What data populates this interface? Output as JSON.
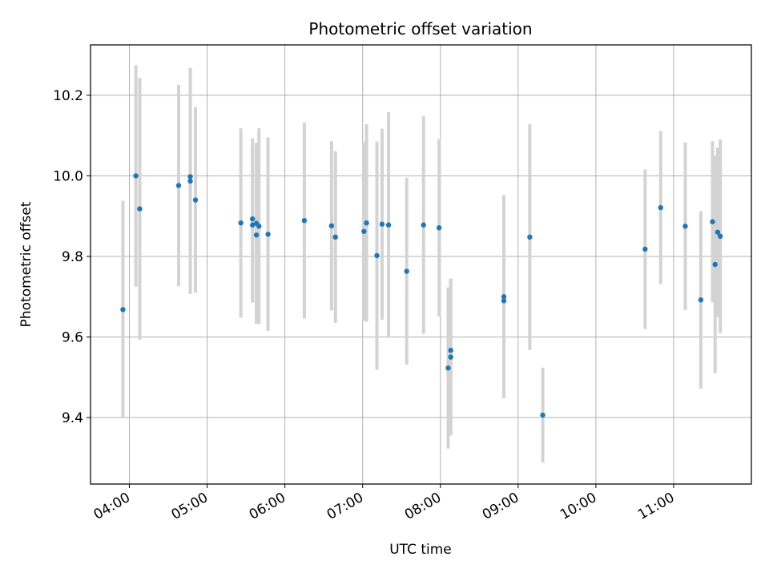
{
  "chart_data": {
    "type": "scatter",
    "title": "Photometric offset variation",
    "xlabel": "UTC time",
    "ylabel": "Photometric offset",
    "x_is_time": true,
    "xlim": [
      "03:30",
      "12:00"
    ],
    "ylim": [
      9.235,
      10.325
    ],
    "xticks": [
      "04:00",
      "05:00",
      "06:00",
      "07:00",
      "08:00",
      "09:00",
      "10:00",
      "11:00"
    ],
    "yticks": [
      "9.4",
      "9.6",
      "9.8",
      "10.0",
      "10.2"
    ],
    "grid": true,
    "colors": {
      "point": "#1f77b4",
      "errorbar": "#d3d3d3",
      "grid": "#b0b0b0"
    },
    "points": [
      {
        "x": "03:55",
        "y": 9.668,
        "err": 0.27
      },
      {
        "x": "04:05",
        "y": 10.0,
        "err": 0.275
      },
      {
        "x": "04:08",
        "y": 9.918,
        "err": 0.325
      },
      {
        "x": "04:38",
        "y": 9.976,
        "err": 0.25
      },
      {
        "x": "04:47",
        "y": 9.998,
        "err": 0.27
      },
      {
        "x": "04:47",
        "y": 9.987,
        "err": 0.28
      },
      {
        "x": "04:51",
        "y": 9.94,
        "err": 0.23
      },
      {
        "x": "05:26",
        "y": 9.883,
        "err": 0.235
      },
      {
        "x": "05:35",
        "y": 9.878,
        "err": 0.193
      },
      {
        "x": "05:35",
        "y": 9.893,
        "err": 0.2
      },
      {
        "x": "05:38",
        "y": 9.882,
        "err": 0.2
      },
      {
        "x": "05:38",
        "y": 9.853,
        "err": 0.22
      },
      {
        "x": "05:40",
        "y": 9.875,
        "err": 0.243
      },
      {
        "x": "05:47",
        "y": 9.855,
        "err": 0.24
      },
      {
        "x": "06:15",
        "y": 9.889,
        "err": 0.243
      },
      {
        "x": "06:36",
        "y": 9.876,
        "err": 0.21
      },
      {
        "x": "06:39",
        "y": 9.848,
        "err": 0.213
      },
      {
        "x": "07:01",
        "y": 9.862,
        "err": 0.222
      },
      {
        "x": "07:03",
        "y": 9.883,
        "err": 0.245
      },
      {
        "x": "07:11",
        "y": 9.802,
        "err": 0.283
      },
      {
        "x": "07:15",
        "y": 9.88,
        "err": 0.237
      },
      {
        "x": "07:20",
        "y": 9.878,
        "err": 0.28
      },
      {
        "x": "07:34",
        "y": 9.763,
        "err": 0.232
      },
      {
        "x": "07:47",
        "y": 9.878,
        "err": 0.27
      },
      {
        "x": "07:59",
        "y": 9.871,
        "err": 0.22
      },
      {
        "x": "08:06",
        "y": 9.523,
        "err": 0.2
      },
      {
        "x": "08:08",
        "y": 9.567,
        "err": 0.178
      },
      {
        "x": "08:08",
        "y": 9.55,
        "err": 0.195
      },
      {
        "x": "08:49",
        "y": 9.7,
        "err": 0.252
      },
      {
        "x": "08:49",
        "y": 9.69,
        "err": 0.242
      },
      {
        "x": "09:09",
        "y": 9.848,
        "err": 0.28
      },
      {
        "x": "09:19",
        "y": 9.406,
        "err": 0.118
      },
      {
        "x": "10:38",
        "y": 9.818,
        "err": 0.198
      },
      {
        "x": "10:50",
        "y": 9.921,
        "err": 0.19
      },
      {
        "x": "11:09",
        "y": 9.875,
        "err": 0.208
      },
      {
        "x": "11:21",
        "y": 9.692,
        "err": 0.22
      },
      {
        "x": "11:30",
        "y": 9.886,
        "err": 0.2
      },
      {
        "x": "11:32",
        "y": 9.78,
        "err": 0.27
      },
      {
        "x": "11:34",
        "y": 9.86,
        "err": 0.21
      },
      {
        "x": "11:36",
        "y": 9.85,
        "err": 0.24
      }
    ]
  }
}
